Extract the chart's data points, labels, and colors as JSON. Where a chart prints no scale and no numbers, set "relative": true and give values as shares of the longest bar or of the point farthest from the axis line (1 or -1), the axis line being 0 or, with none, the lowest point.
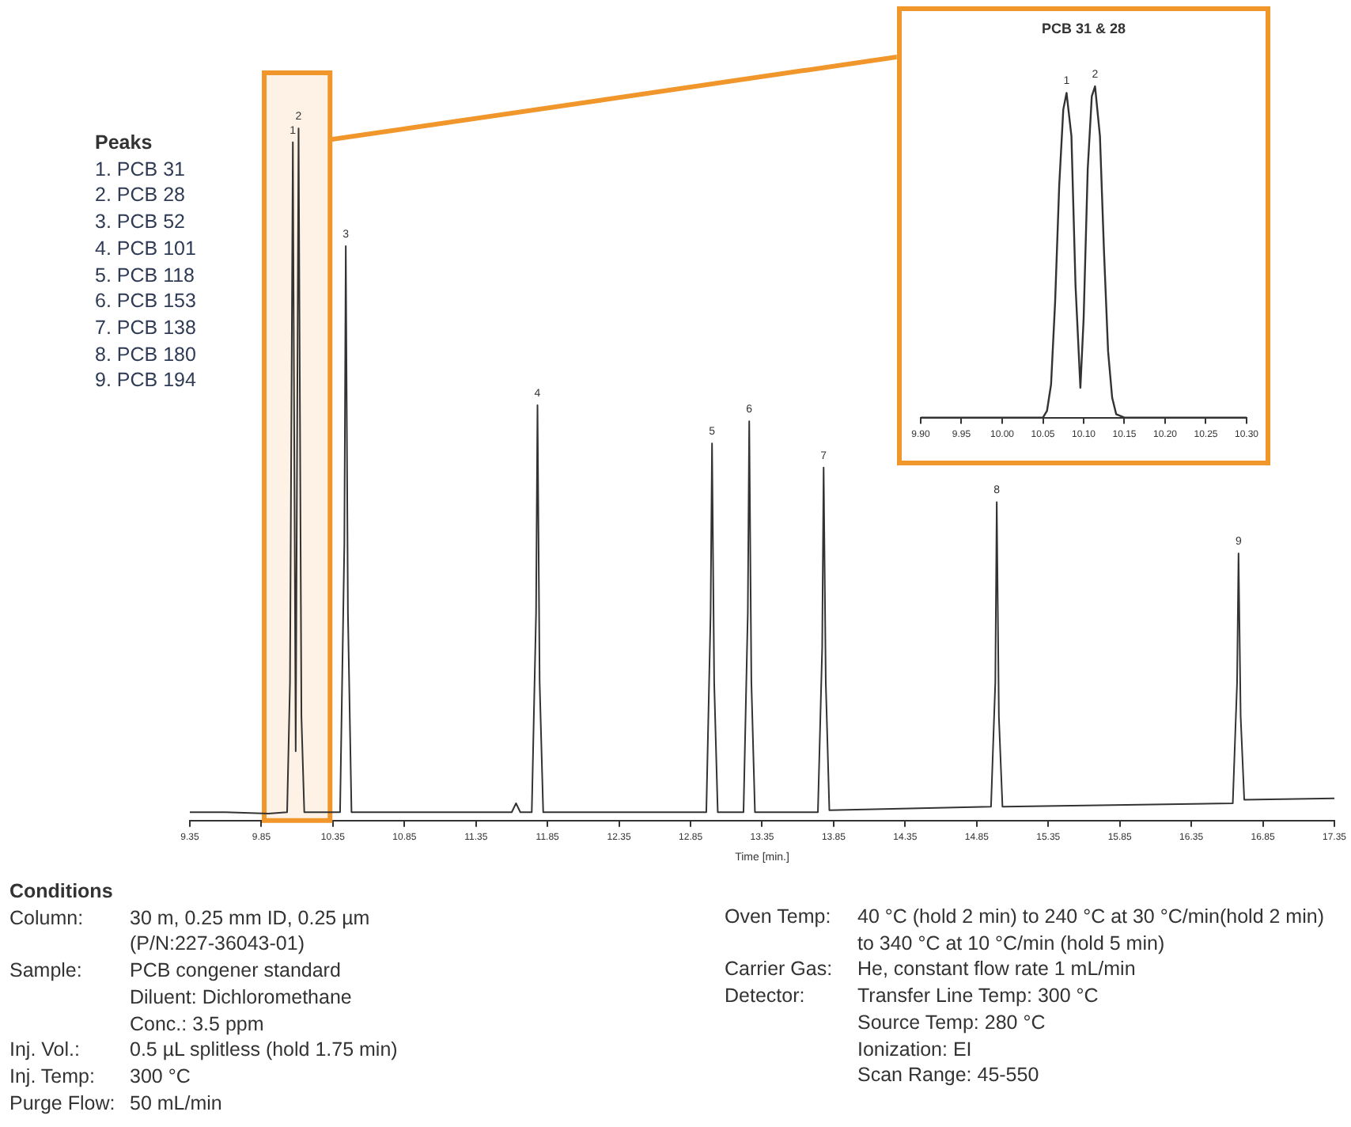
{
  "chart_data": [
    {
      "type": "line",
      "relative": true,
      "xlabel": "Time [min.]",
      "xlim": [
        9.35,
        17.35
      ],
      "xticks": [
        9.35,
        9.85,
        10.35,
        10.85,
        11.35,
        11.85,
        12.35,
        12.85,
        13.35,
        13.85,
        14.35,
        14.85,
        15.35,
        15.85,
        16.35,
        16.85,
        17.35
      ],
      "x": [
        9.35,
        9.6,
        9.9,
        10.03,
        10.05,
        10.07,
        10.09,
        10.11,
        10.13,
        10.15,
        10.4,
        10.43,
        10.44,
        10.455,
        10.48,
        11.6,
        11.63,
        11.66,
        11.74,
        11.77,
        11.78,
        11.795,
        11.82,
        12.96,
        12.99,
        13.0,
        13.015,
        13.04,
        13.22,
        13.25,
        13.26,
        13.275,
        13.3,
        13.74,
        13.77,
        13.78,
        13.795,
        13.82,
        14.95,
        14.98,
        14.99,
        15.005,
        15.03,
        16.64,
        16.67,
        16.68,
        16.695,
        16.72,
        17.35
      ],
      "series": [
        {
          "color": "#333333",
          "values": [
            0.012,
            0.012,
            0.01,
            0.012,
            0.2,
            0.98,
            0.1,
            1,
            0.15,
            0.012,
            0.012,
            0.4,
            0.83,
            0.3,
            0.012,
            0.012,
            0.025,
            0.012,
            0.012,
            0.3,
            0.6,
            0.2,
            0.012,
            0.012,
            0.3,
            0.545,
            0.2,
            0.012,
            0.012,
            0.3,
            0.577,
            0.2,
            0.012,
            0.012,
            0.25,
            0.51,
            0.2,
            0.015,
            0.02,
            0.2,
            0.46,
            0.15,
            0.02,
            0.025,
            0.2,
            0.386,
            0.15,
            0.03,
            0.032
          ]
        }
      ],
      "bands": [
        {
          "axis": "x",
          "from": 9.87,
          "to": 10.33,
          "color": "#f0962a"
        }
      ],
      "legend": false,
      "grid": false,
      "marker": "none",
      "line_style": "solid",
      "annotations": [
        {
          "text": "1",
          "x": 10.07,
          "y": 0.98
        },
        {
          "text": "2",
          "x": 10.11,
          "y": 1
        },
        {
          "text": "3",
          "x": 10.44,
          "y": 0.83
        },
        {
          "text": "4",
          "x": 11.78,
          "y": 0.6
        },
        {
          "text": "5",
          "x": 13.0,
          "y": 0.545
        },
        {
          "text": "6",
          "x": 13.26,
          "y": 0.577
        },
        {
          "text": "7",
          "x": 13.78,
          "y": 0.51
        },
        {
          "text": "8",
          "x": 14.99,
          "y": 0.46
        },
        {
          "text": "9",
          "x": 16.68,
          "y": 0.386
        },
        "Peaks\n1. PCB 31\n2. PCB 28\n3. PCB 52\n4. PCB 101\n5. PCB 118\n6. PCB 153\n7. PCB 138\n8. PCB 180\n9. PCB 194",
        "Conditions",
        "Column:\t30 m, 0.25 mm ID, 0.25 µm\n(P/N:227-36043-01)",
        "Sample:\tPCB congener standard\nDiluent: Dichloromethane\nConc.: 3.5 ppm",
        "Inj. Vol.:\t0.5 µL splitless (hold 1.75 min)",
        "Inj. Temp:\t300 °C",
        "Purge Flow:\t50 mL/min",
        "Oven Temp:\t40 °C (hold 2 min) to 240 °C at 30 °C/min(hold 2 min) to 340 °C at 10 °C/min (hold 5 min)",
        "Carrier Gas:\tHe, constant flow rate 1 mL/min",
        "Detector:\tTransfer Line  Temp: 300 °C\nSource Temp: 280 °C\nIonization: EI\nScan Range: 45-550"
      ]
    },
    {
      "type": "line",
      "relative": true,
      "title": "PCB 31 & 28",
      "xlim": [
        9.9,
        10.3
      ],
      "xticks": [
        {
          "value": 9.9,
          "label": "9.90"
        },
        9.95,
        {
          "value": 10,
          "label": "10.00"
        },
        10.05,
        {
          "value": 10.1,
          "label": "10.10"
        },
        10.15,
        {
          "value": 10.2,
          "label": "10.20"
        },
        10.25,
        {
          "value": 10.3,
          "label": "10.30"
        }
      ],
      "x": [
        9.9,
        10.05,
        10.055,
        10.06,
        10.065,
        10.07,
        10.075,
        10.079,
        10.085,
        10.09,
        10.096,
        10.1,
        10.105,
        10.11,
        10.114,
        10.12,
        10.125,
        10.13,
        10.135,
        10.14,
        10.15,
        10.3
      ],
      "series": [
        {
          "color": "#333333",
          "values": [
            0,
            0,
            0.02,
            0.1,
            0.35,
            0.7,
            0.93,
            0.98,
            0.85,
            0.4,
            0.09,
            0.3,
            0.75,
            0.97,
            1,
            0.85,
            0.5,
            0.2,
            0.06,
            0.01,
            0,
            0
          ]
        }
      ],
      "legend": false,
      "grid": false,
      "marker": "none",
      "line_style": "solid",
      "annotations": [
        {
          "text": "1",
          "x": 10.079,
          "y": 0.98
        },
        {
          "text": "2",
          "x": 10.114,
          "y": 1
        }
      ]
    }
  ]
}
